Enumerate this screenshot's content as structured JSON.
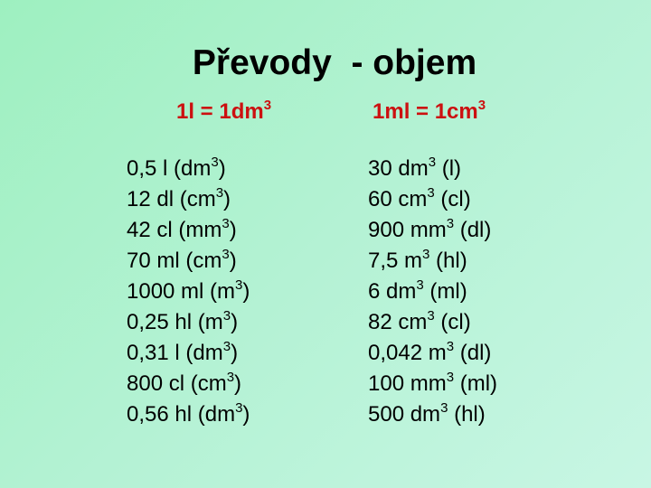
{
  "title": "Převody  - objem",
  "columns": [
    {
      "header": [
        "1l = 1dm",
        "3",
        ""
      ],
      "items": [
        [
          "0,5 l (dm",
          "3",
          ")"
        ],
        [
          "12 dl (cm",
          "3",
          ")"
        ],
        [
          "42 cl (mm",
          "3",
          ")"
        ],
        [
          "70 ml (cm",
          "3",
          ")"
        ],
        [
          "1000 ml (m",
          "3",
          ")"
        ],
        [
          "0,25 hl (m",
          "3",
          ")"
        ],
        [
          "0,31 l (dm",
          "3",
          ")"
        ],
        [
          "800 cl (cm",
          "3",
          ")"
        ],
        [
          "0,56 hl (dm",
          "3",
          ")"
        ]
      ]
    },
    {
      "header": [
        "1ml = 1cm",
        "3",
        ""
      ],
      "items": [
        [
          "30 dm",
          "3",
          " (l)"
        ],
        [
          "60 cm",
          "3",
          " (cl)"
        ],
        [
          "900 mm",
          "3",
          " (dl)"
        ],
        [
          "7,5 m",
          "3",
          " (hl)"
        ],
        [
          "6 dm",
          "3",
          " (ml)"
        ],
        [
          "82 cm",
          "3",
          " (cl)"
        ],
        [
          "0,042 m",
          "3",
          " (dl)"
        ],
        [
          "100 mm",
          "3",
          " (ml)"
        ],
        [
          "500 dm",
          "3",
          " (hl)"
        ]
      ]
    }
  ]
}
